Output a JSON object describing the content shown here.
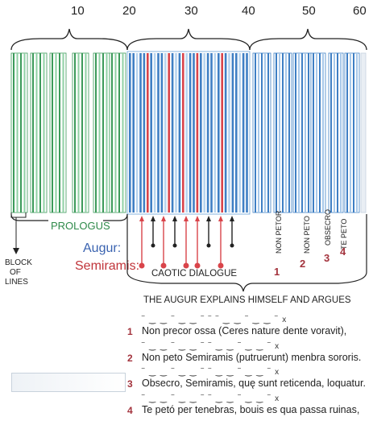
{
  "scale_numbers": [
    "10",
    "20",
    "30",
    "40",
    "50",
    "60"
  ],
  "sections": {
    "prologue": "PROLOGUS",
    "block_label": [
      "BLOCK",
      "OF",
      "LINES"
    ],
    "caotic": "CAOTIC DIALOGUE",
    "augur_explains": "THE AUGUR EXPLAINS HIMSELF AND ARGUES"
  },
  "speakers": {
    "augur": "Augur:",
    "semiramis": "Semiramis:"
  },
  "vertical_labels": [
    "NON PETOR",
    "NON PETO",
    "OBSECRO",
    "TE PETO"
  ],
  "phrase_numbers": [
    "1",
    "2",
    "3",
    "4"
  ],
  "verses": [
    {
      "num": "1",
      "text": "Non precor ossa (Ceres nature dente voravit),",
      "meter": "‾ ‿ ‿ ‾ ‿ ‿ ‾   ‾ ‾ ‿ ‿ ‾ ‿ ‿ ‾ x"
    },
    {
      "num": "2",
      "text": "Non peto Semiramis (putruerunt) menbra sororis.",
      "meter": "‾ ‿ ‿ ‾ ‿ ‿ ‾   ‾ ‿ ‿ ‾ ‿ ‿ ‾ x"
    },
    {
      "num": "3",
      "text": "Obsecro, Semiramis, quę sunt reticenda, loquatur.",
      "meter": "‾ ‿ ‿ ‾ ‿ ‿ ‾   ‾ ‿ ‿ ‾ ‿ ‿ ‾ x"
    },
    {
      "num": "4",
      "text": "Te petó per tenebras, bouis es qua passa ruinas,",
      "meter": "‾ ‿ ‿ ‾ ‿ ‿ ‾   ‾ ‿ ‿ ‾ ‿ ‿ ‾ x"
    }
  ],
  "colors": {
    "green": "#3c9a5a",
    "blue": "#3f7fc4",
    "red": "#d9444a",
    "augur_text": "#3a63b0",
    "semiramis_text": "#c0343a"
  }
}
